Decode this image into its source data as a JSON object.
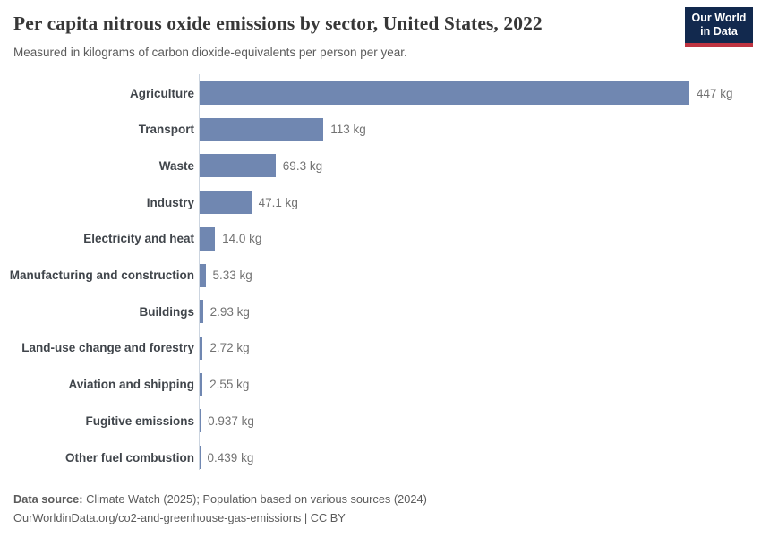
{
  "header": {
    "title": "Per capita nitrous oxide emissions by sector, United States, 2022",
    "subtitle": "Measured in kilograms of carbon dioxide-equivalents per person per year.",
    "logo": {
      "line1": "Our World",
      "line2": "in Data"
    }
  },
  "chart_data": {
    "type": "bar",
    "orientation": "horizontal",
    "title": "Per capita nitrous oxide emissions by sector, United States, 2022",
    "unit": "kg",
    "xlim": [
      0,
      447
    ],
    "grid": false,
    "legend": false,
    "bar_color": "#7087b1",
    "categories": [
      "Agriculture",
      "Transport",
      "Waste",
      "Industry",
      "Electricity and heat",
      "Manufacturing and construction",
      "Buildings",
      "Land-use change and forestry",
      "Aviation and shipping",
      "Fugitive emissions",
      "Other fuel combustion"
    ],
    "values": [
      447,
      113,
      69.3,
      47.1,
      14.0,
      5.33,
      2.93,
      2.72,
      2.55,
      0.937,
      0.439
    ],
    "value_labels": [
      "447 kg",
      "113 kg",
      "69.3 kg",
      "47.1 kg",
      "14.0 kg",
      "5.33 kg",
      "2.93 kg",
      "2.72 kg",
      "2.55 kg",
      "0.937 kg",
      "0.439 kg"
    ]
  },
  "footer": {
    "source_label": "Data source:",
    "source_text": " Climate Watch (2025); Population based on various sources (2024)",
    "note": "OurWorldinData.org/co2-and-greenhouse-gas-emissions | CC BY"
  },
  "colors": {
    "bar": "#7087b1",
    "axis_line": "#ccd5e0",
    "logo_bg": "#12294e",
    "logo_red": "#bf3441",
    "title_text": "#373737",
    "subtitle_text": "#5b5b5b",
    "category_label": "#40454b",
    "value_label": "#727272"
  }
}
